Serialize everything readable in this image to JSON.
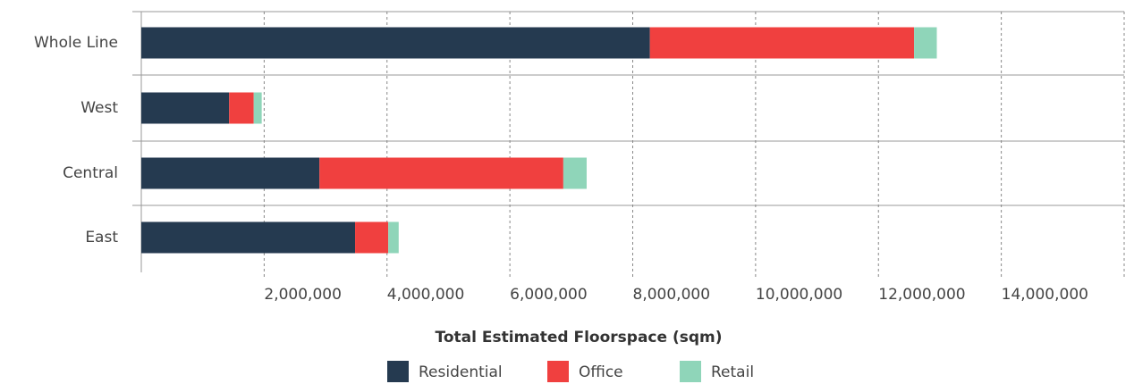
{
  "chart_data": {
    "type": "bar",
    "orientation": "horizontal",
    "stacked": true,
    "xlabel": "Total Estimated Floorspace (sqm)",
    "categories": [
      "Whole Line",
      "West",
      "Central",
      "East"
    ],
    "series": [
      {
        "name": "Residential",
        "color": "#253a50",
        "values": [
          8280000,
          1430000,
          2900000,
          3480000
        ]
      },
      {
        "name": "Office",
        "color": "#f0403f",
        "values": [
          4300000,
          400000,
          3970000,
          540000
        ]
      },
      {
        "name": "Retail",
        "color": "#8fd5b9",
        "values": [
          370000,
          130000,
          380000,
          170000
        ]
      }
    ],
    "xlim": [
      0,
      16000000
    ],
    "xticks": [
      {
        "value": 2000000,
        "label": "2,000,000"
      },
      {
        "value": 4000000,
        "label": "4,000,000"
      },
      {
        "value": 6000000,
        "label": "6,000,000"
      },
      {
        "value": 8000000,
        "label": "8,000,000"
      },
      {
        "value": 10000000,
        "label": "10,000,000"
      },
      {
        "value": 12000000,
        "label": "12,000,000"
      },
      {
        "value": 14000000,
        "label": "14,000,000"
      }
    ],
    "grid": true,
    "legend": "bottom"
  }
}
